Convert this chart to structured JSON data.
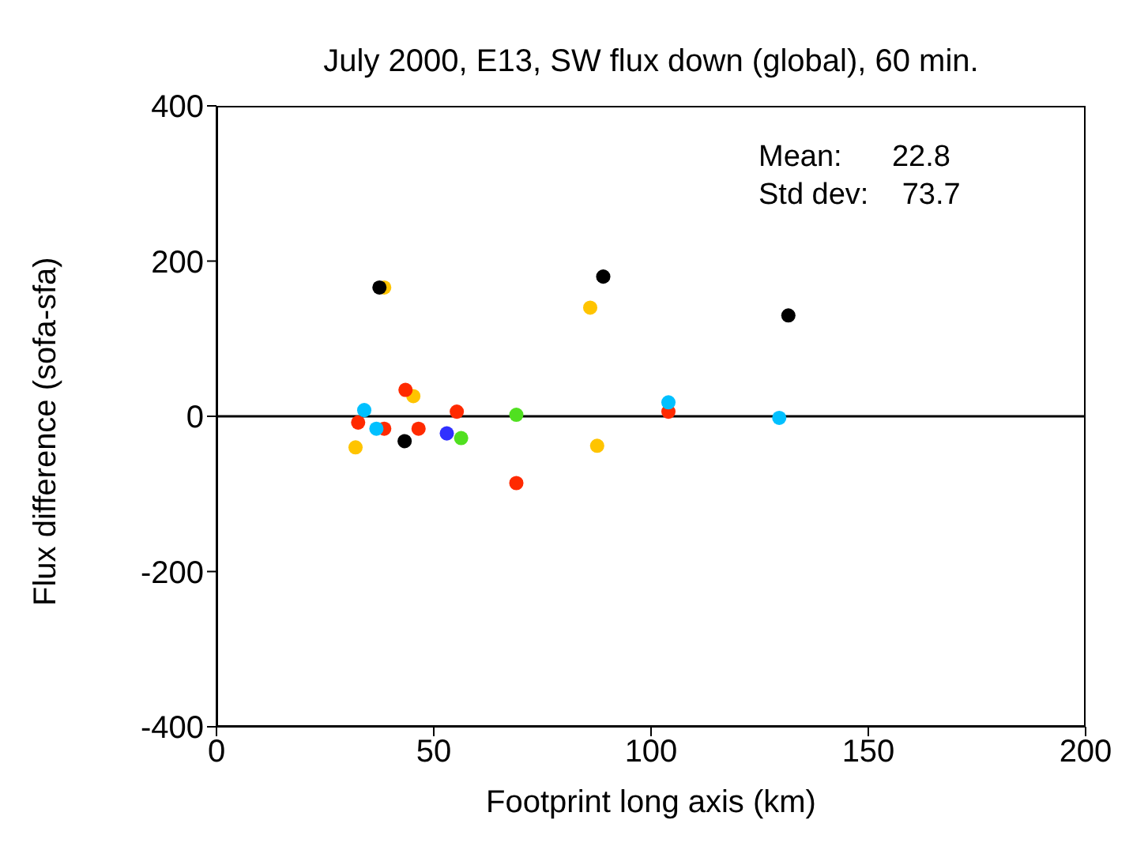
{
  "chart_data": {
    "type": "scatter",
    "title": "July 2000, E13, SW flux down (global), 60 min.",
    "xlabel": "Footprint long axis (km)",
    "ylabel": "Flux difference (sofa-sfa)",
    "annotations": [
      "Mean:      22.8",
      "Std dev:    73.7"
    ],
    "xlim": [
      0,
      200
    ],
    "xticks": [
      0,
      50,
      100,
      150,
      200
    ],
    "ylim": [
      -400,
      400
    ],
    "yticks": [
      -400,
      -200,
      0,
      200,
      400
    ],
    "grid": false,
    "ref_lines": [
      {
        "axis": "y",
        "value": 0,
        "color": "#000000"
      }
    ],
    "series": [
      {
        "color": "#ffc400",
        "x": [
          38.6,
          86,
          45.3,
          32,
          87.6
        ],
        "values": [
          166,
          140,
          26,
          -40,
          -38
        ]
      },
      {
        "color": "#ff2a00",
        "x": [
          43.5,
          32.6,
          38.6,
          46.5,
          55.3,
          69,
          104
        ],
        "values": [
          34,
          -8,
          -16,
          -16,
          6,
          -86,
          6
        ]
      },
      {
        "color": "#00c0ff",
        "x": [
          34,
          36.8,
          104,
          129.5
        ],
        "values": [
          8,
          -16,
          18,
          -2
        ]
      },
      {
        "color": "#3030ff",
        "x": [
          53
        ],
        "values": [
          -22
        ]
      },
      {
        "color": "#50e020",
        "x": [
          56.3,
          69
        ],
        "values": [
          -28,
          2
        ]
      },
      {
        "color": "#000000",
        "x": [
          37.5,
          89,
          131.6,
          43.3
        ],
        "values": [
          166,
          180,
          130,
          -32
        ]
      }
    ]
  }
}
